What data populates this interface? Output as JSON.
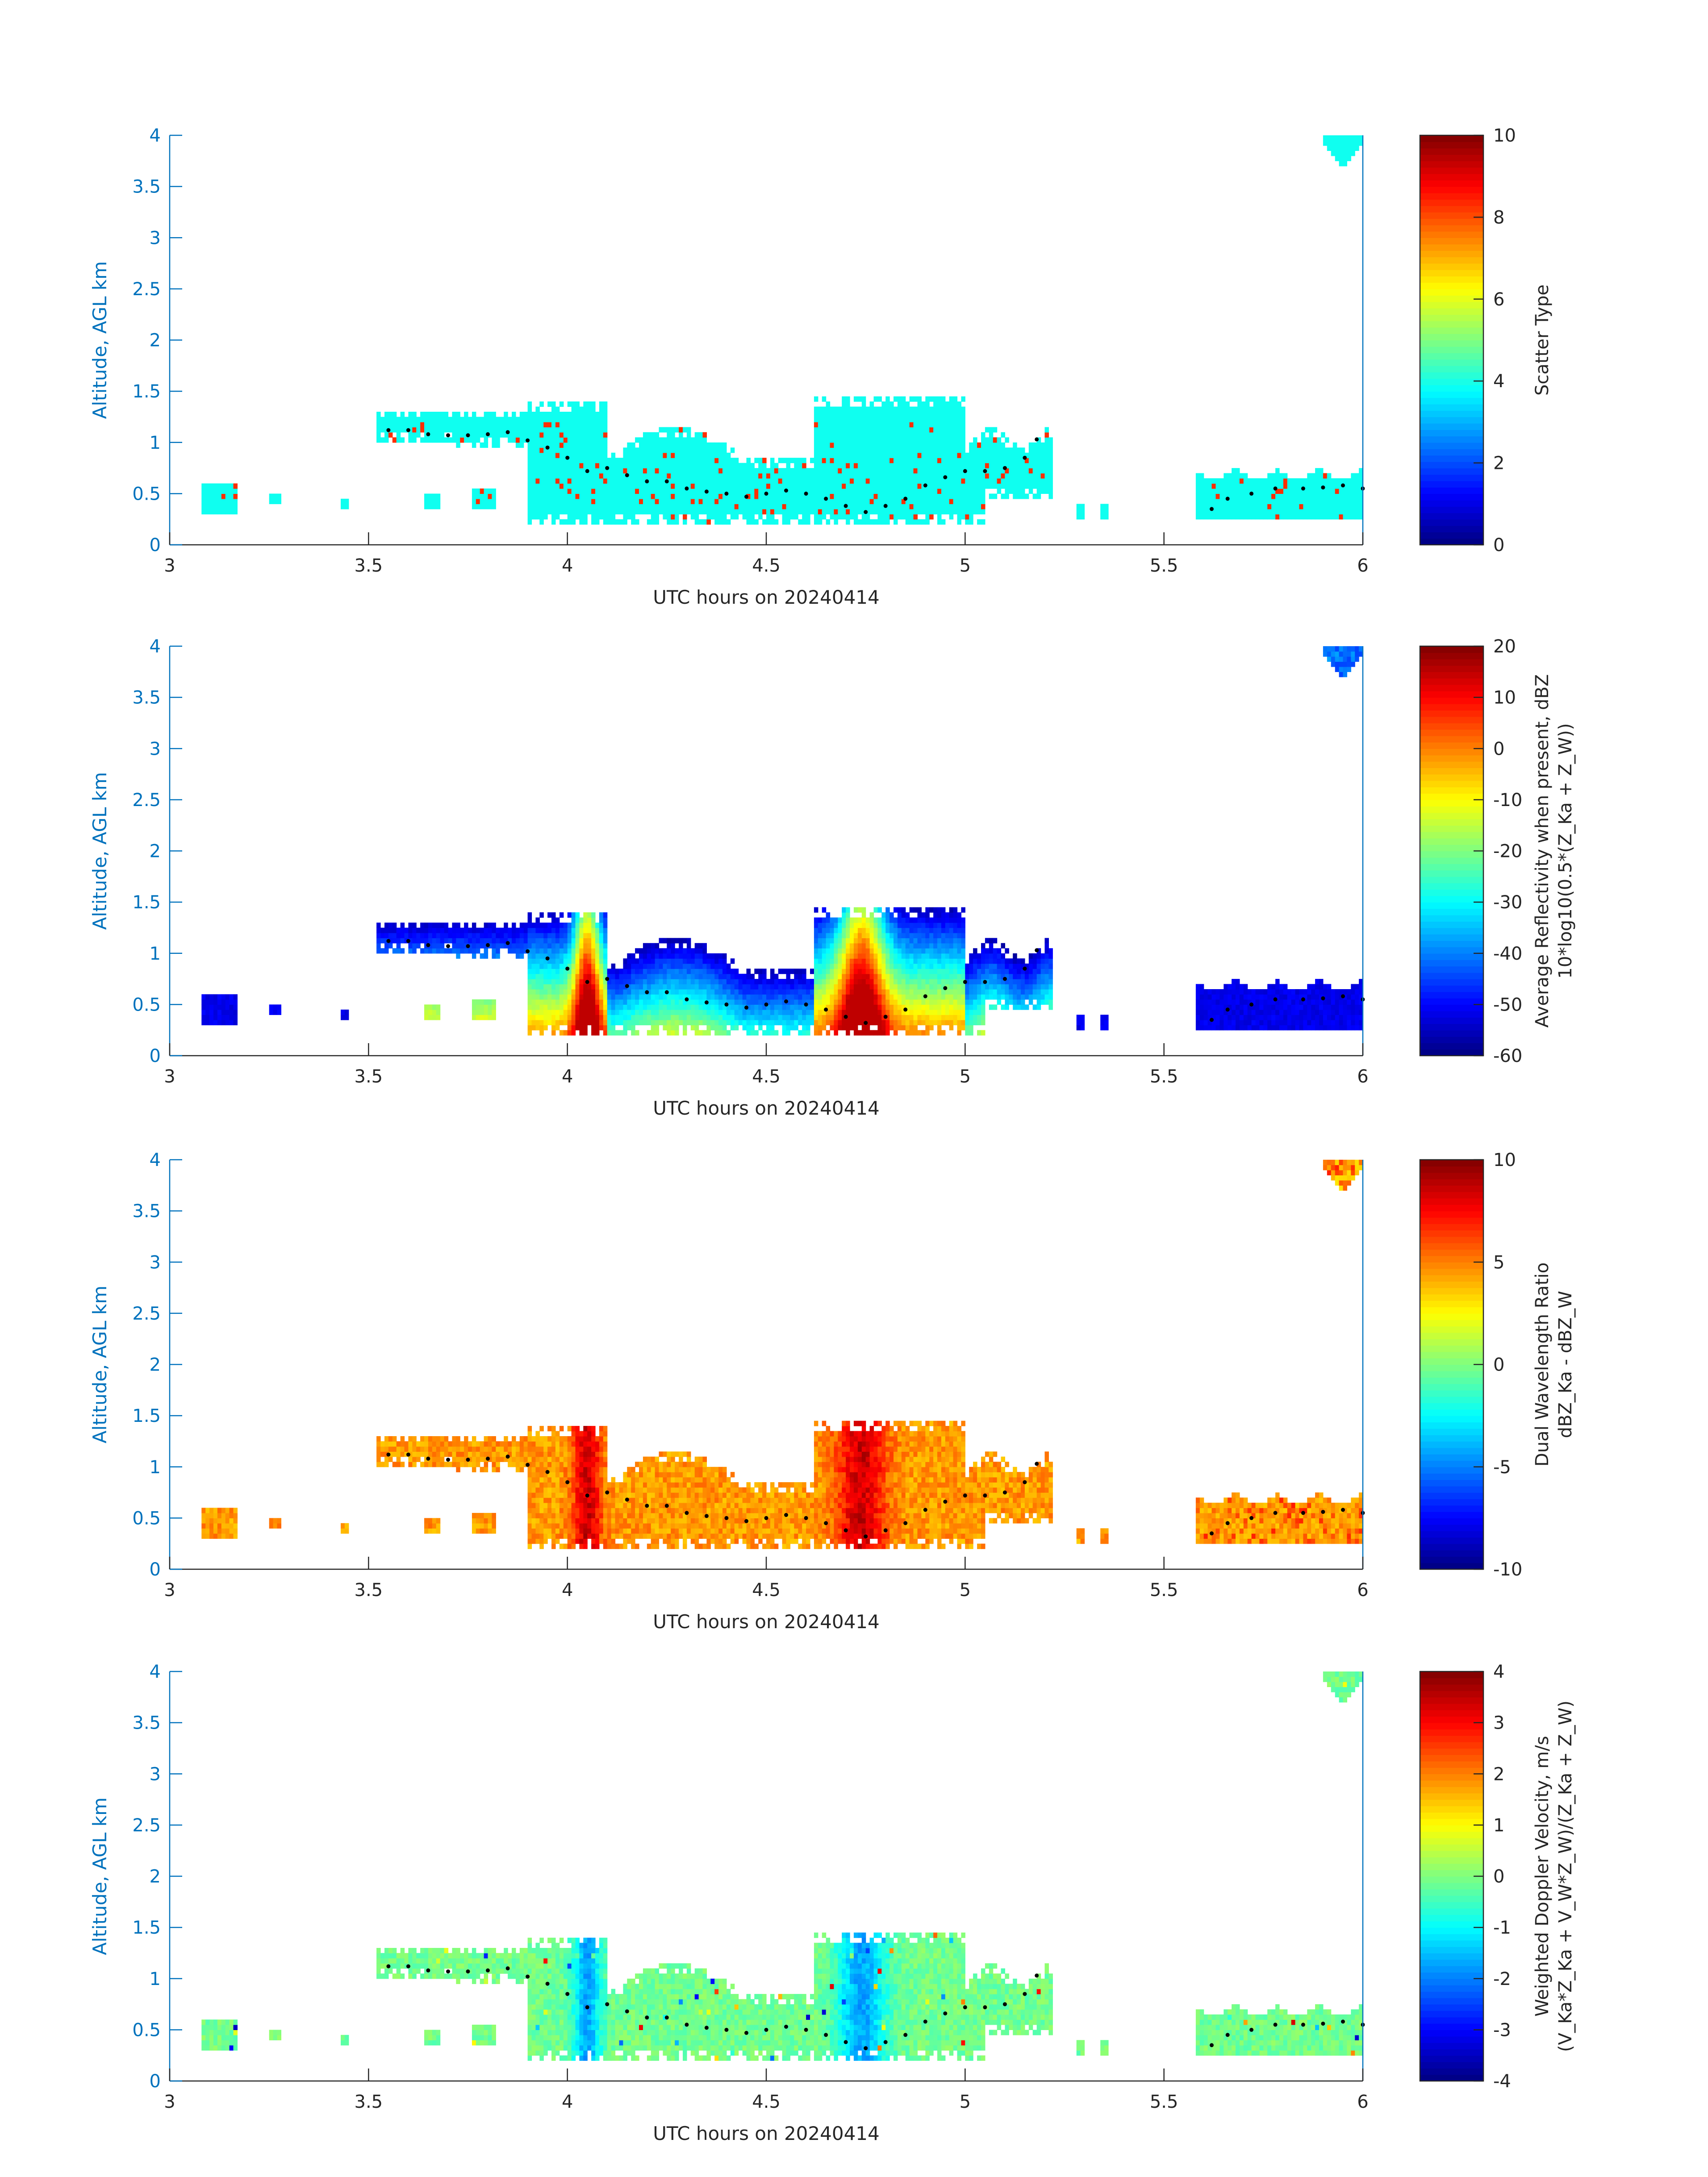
{
  "figure": {
    "colors": {
      "axis": "#0072bd",
      "text": "#262626",
      "profile_dots": "#000000"
    }
  },
  "chart_data": [
    {
      "type": "heatmap",
      "title": "",
      "xlabel": "UTC hours on 20240414",
      "ylabel": "Altitude, AGL km",
      "xlim": [
        3,
        6
      ],
      "ylim": [
        0,
        4
      ],
      "xticks": [
        "3",
        "3.5",
        "4",
        "4.5",
        "5",
        "5.5",
        "6"
      ],
      "yticks": [
        "0",
        "0.5",
        "1",
        "1.5",
        "2",
        "2.5",
        "3",
        "3.5",
        "4"
      ],
      "colorbar": {
        "label": "Scatter Type",
        "label2": "",
        "range": [
          0,
          10
        ],
        "ticks": [
          "0",
          "2",
          "4",
          "6",
          "8",
          "10"
        ],
        "colormap": "jet"
      },
      "field": "scatter_type",
      "typical_value": 3.9,
      "highlight_value": 8.3
    },
    {
      "type": "heatmap",
      "title": "",
      "xlabel": "UTC hours on 20240414",
      "ylabel": "Altitude, AGL km",
      "xlim": [
        3,
        6
      ],
      "ylim": [
        0,
        4
      ],
      "xticks": [
        "3",
        "3.5",
        "4",
        "4.5",
        "5",
        "5.5",
        "6"
      ],
      "yticks": [
        "0",
        "0.5",
        "1",
        "1.5",
        "2",
        "2.5",
        "3",
        "3.5",
        "4"
      ],
      "colorbar": {
        "label": "Average Reflectivity when present, dBZ",
        "label2": "10*log10(0.5*(Z_Ka + Z_W))",
        "range": [
          -60,
          20
        ],
        "ticks": [
          "-60",
          "-50",
          "-40",
          "-30",
          "-20",
          "-10",
          "0",
          "10",
          "20"
        ],
        "colormap": "jet"
      },
      "field": "reflectivity"
    },
    {
      "type": "heatmap",
      "title": "",
      "xlabel": "UTC hours on 20240414",
      "ylabel": "Altitude, AGL km",
      "xlim": [
        3,
        6
      ],
      "ylim": [
        0,
        4
      ],
      "xticks": [
        "3",
        "3.5",
        "4",
        "4.5",
        "5",
        "5.5",
        "6"
      ],
      "yticks": [
        "0",
        "0.5",
        "1",
        "1.5",
        "2",
        "2.5",
        "3",
        "3.5",
        "4"
      ],
      "colorbar": {
        "label": "Dual Wavelength Ratio",
        "label2": "dBZ_Ka - dBZ_W",
        "range": [
          -10,
          10
        ],
        "ticks": [
          "-10",
          "-5",
          "0",
          "5",
          "10"
        ],
        "colormap": "jet"
      },
      "field": "dwr"
    },
    {
      "type": "heatmap",
      "title": "",
      "xlabel": "UTC hours on 20240414",
      "ylabel": "Altitude, AGL km",
      "xlim": [
        3,
        6
      ],
      "ylim": [
        0,
        4
      ],
      "xticks": [
        "3",
        "3.5",
        "4",
        "4.5",
        "5",
        "5.5",
        "6"
      ],
      "yticks": [
        "0",
        "0.5",
        "1",
        "1.5",
        "2",
        "2.5",
        "3",
        "3.5",
        "4"
      ],
      "colorbar": {
        "label": "Weighted Doppler Velocity, m/s",
        "label2": "(V_Ka*Z_Ka + V_W*Z_W)/(Z_Ka + Z_W)",
        "range": [
          -4,
          4
        ],
        "ticks": [
          "-4",
          "-3",
          "-2",
          "-1",
          "0",
          "1",
          "2",
          "3",
          "4"
        ],
        "colormap": "jet"
      },
      "field": "doppler_velocity"
    }
  ],
  "echo_regions": [
    {
      "name": "main low cloud layer",
      "t": [
        3.08,
        5.22
      ],
      "base_km": 0.2,
      "top_km": 1.45
    },
    {
      "name": "eastern low cloud layer",
      "t": [
        5.58,
        6.0
      ],
      "base_km": 0.25,
      "top_km": 0.7
    },
    {
      "name": "upper echo",
      "t": [
        5.9,
        6.0
      ],
      "base_km": 3.65,
      "top_km": 4.0
    }
  ],
  "profile_dots": [
    [
      3.55,
      1.12
    ],
    [
      3.6,
      1.12
    ],
    [
      3.65,
      1.08
    ],
    [
      3.7,
      1.07
    ],
    [
      3.75,
      1.07
    ],
    [
      3.8,
      1.08
    ],
    [
      3.85,
      1.1
    ],
    [
      3.9,
      1.02
    ],
    [
      3.95,
      0.95
    ],
    [
      4.0,
      0.85
    ],
    [
      4.05,
      0.72
    ],
    [
      4.1,
      0.75
    ],
    [
      4.15,
      0.68
    ],
    [
      4.2,
      0.62
    ],
    [
      4.25,
      0.62
    ],
    [
      4.3,
      0.55
    ],
    [
      4.35,
      0.52
    ],
    [
      4.4,
      0.5
    ],
    [
      4.45,
      0.47
    ],
    [
      4.5,
      0.5
    ],
    [
      4.55,
      0.53
    ],
    [
      4.6,
      0.5
    ],
    [
      4.65,
      0.45
    ],
    [
      4.7,
      0.38
    ],
    [
      4.75,
      0.32
    ],
    [
      4.8,
      0.38
    ],
    [
      4.85,
      0.45
    ],
    [
      4.9,
      0.58
    ],
    [
      4.95,
      0.66
    ],
    [
      5.0,
      0.72
    ],
    [
      5.05,
      0.72
    ],
    [
      5.1,
      0.75
    ],
    [
      5.15,
      0.85
    ],
    [
      5.18,
      1.03
    ],
    [
      5.62,
      0.35
    ],
    [
      5.66,
      0.45
    ],
    [
      5.72,
      0.5
    ],
    [
      5.78,
      0.55
    ],
    [
      5.85,
      0.55
    ],
    [
      5.9,
      0.56
    ],
    [
      5.95,
      0.58
    ],
    [
      6.0,
      0.55
    ]
  ]
}
